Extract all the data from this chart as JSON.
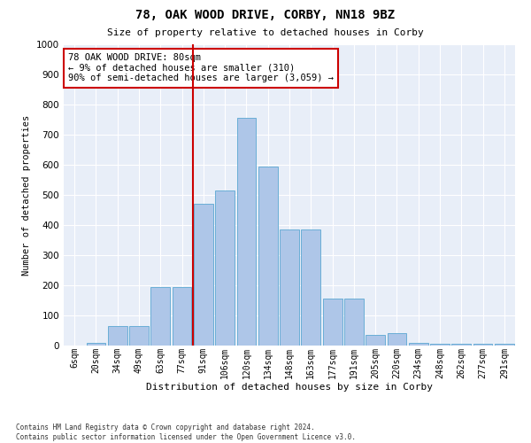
{
  "title": "78, OAK WOOD DRIVE, CORBY, NN18 9BZ",
  "subtitle": "Size of property relative to detached houses in Corby",
  "xlabel": "Distribution of detached houses by size in Corby",
  "ylabel": "Number of detached properties",
  "categories": [
    "6sqm",
    "20sqm",
    "34sqm",
    "49sqm",
    "63sqm",
    "77sqm",
    "91sqm",
    "106sqm",
    "120sqm",
    "134sqm",
    "148sqm",
    "163sqm",
    "177sqm",
    "191sqm",
    "205sqm",
    "220sqm",
    "234sqm",
    "248sqm",
    "262sqm",
    "277sqm",
    "291sqm"
  ],
  "values": [
    0,
    10,
    65,
    65,
    195,
    195,
    470,
    515,
    755,
    595,
    385,
    385,
    155,
    155,
    35,
    40,
    10,
    5,
    5,
    5,
    5
  ],
  "bar_color": "#aec6e8",
  "bar_edge_color": "#6aaed6",
  "vline_color": "#cc0000",
  "annotation_text": "78 OAK WOOD DRIVE: 80sqm\n← 9% of detached houses are smaller (310)\n90% of semi-detached houses are larger (3,059) →",
  "annotation_box_color": "#ffffff",
  "annotation_box_edge": "#cc0000",
  "ylim": [
    0,
    1000
  ],
  "yticks": [
    0,
    100,
    200,
    300,
    400,
    500,
    600,
    700,
    800,
    900,
    1000
  ],
  "footer": "Contains HM Land Registry data © Crown copyright and database right 2024.\nContains public sector information licensed under the Open Government Licence v3.0.",
  "bg_color": "#ffffff",
  "ax_bg_color": "#e8eef8",
  "grid_color": "#ffffff"
}
